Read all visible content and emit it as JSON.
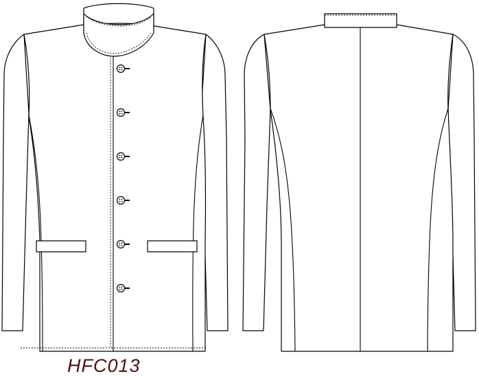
{
  "style_code": "HFC013",
  "colors": {
    "line": "#000000",
    "fill": "#ffffff",
    "label": "#4a0f10"
  },
  "front_view": {
    "button_count": 6
  }
}
